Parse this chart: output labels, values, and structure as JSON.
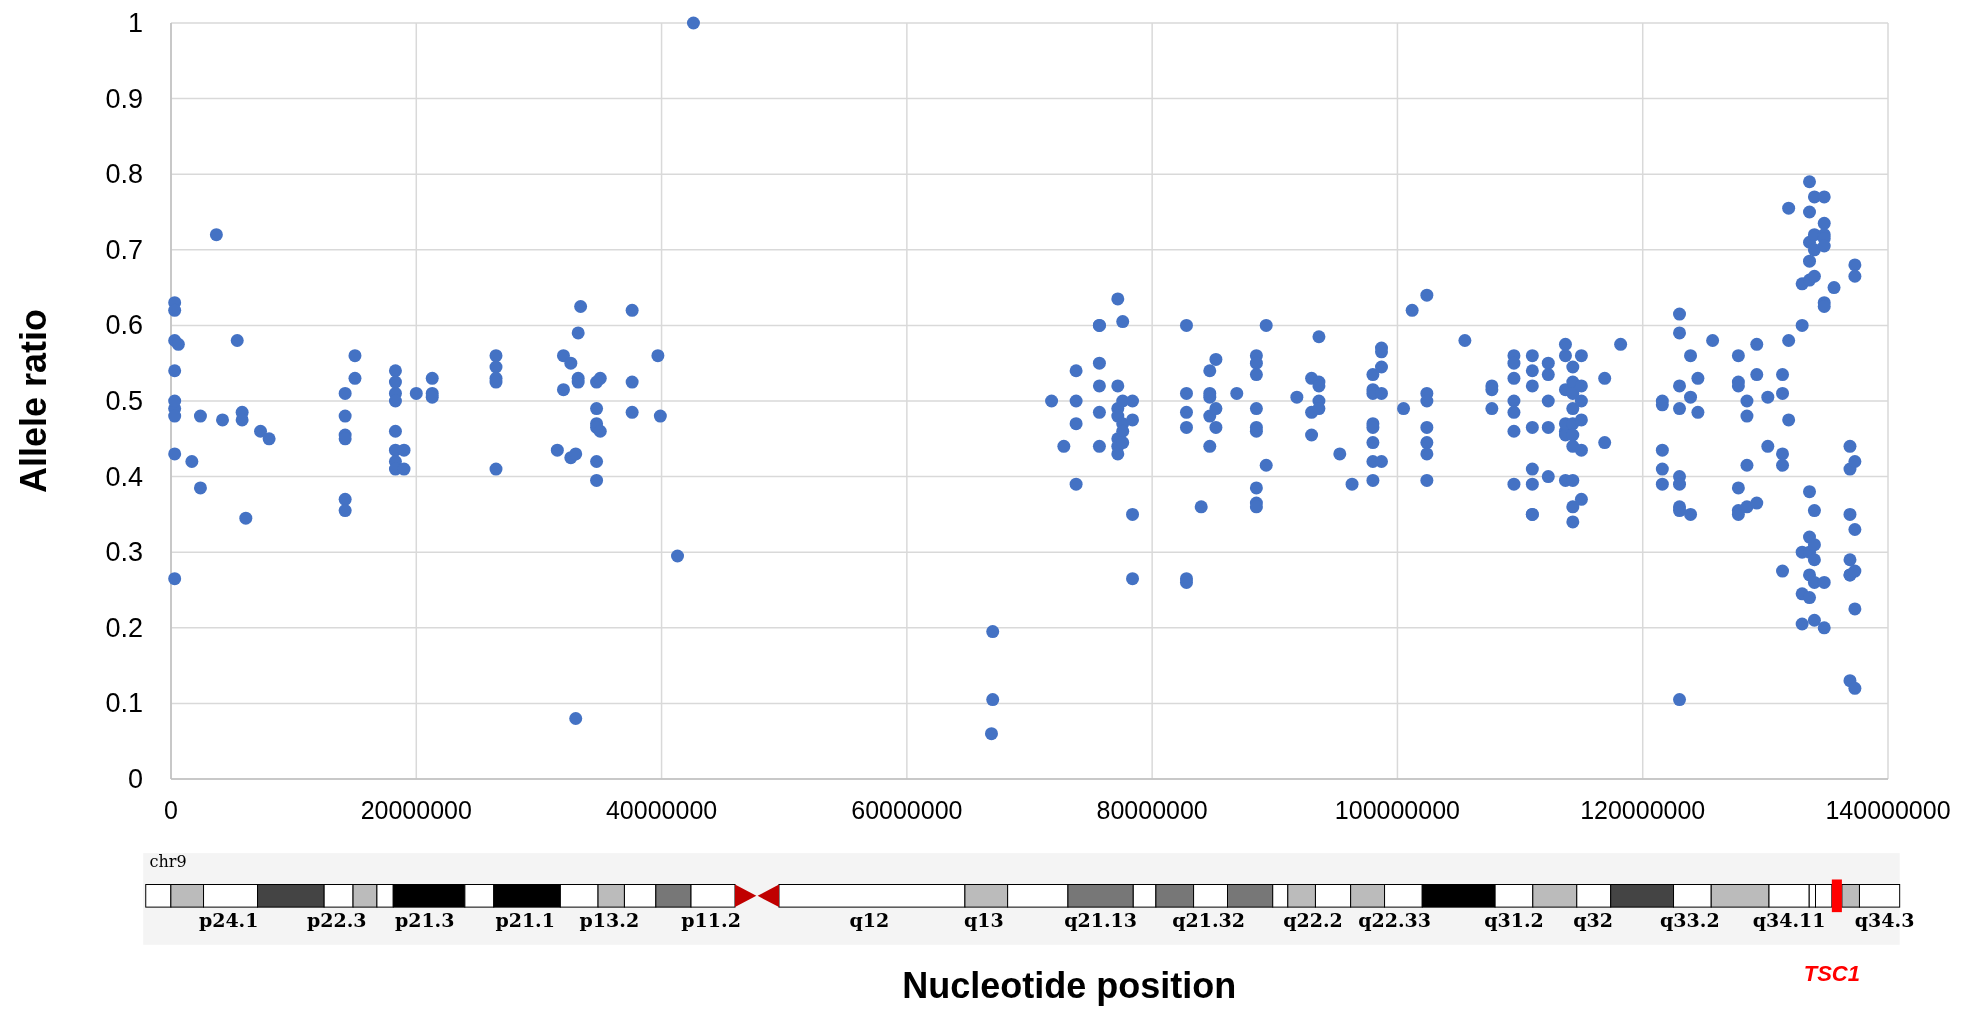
{
  "chart_data": {
    "type": "scatter",
    "xlabel": "Nucleotide position",
    "ylabel": "Allele ratio",
    "xlim": [
      0,
      140000000
    ],
    "ylim": [
      0,
      1
    ],
    "xticks": [
      0,
      20000000,
      40000000,
      60000000,
      80000000,
      100000000,
      120000000,
      140000000
    ],
    "yticks": [
      0,
      0.1,
      0.2,
      0.3,
      0.4,
      0.5,
      0.6,
      0.7,
      0.8,
      0.9,
      1
    ],
    "grid": true,
    "marker": "circle",
    "annotations": [
      "chr9",
      "p24.1",
      "p22.3",
      "p21.3",
      "p21.1",
      "p13.2",
      "p11.2",
      "q12",
      "q13",
      "q21.13",
      "q21.32",
      "q22.2",
      "q22.33",
      "q31.2",
      "q32",
      "q33.2",
      "q34.11",
      "q34.3",
      "TSC1"
    ],
    "series": [
      {
        "color": "#4472c4",
        "x": [
          300000,
          300000,
          300000,
          300000,
          300000,
          300000,
          300000,
          300000,
          300000,
          600000,
          1700000,
          2400000,
          2400000,
          3700000,
          4200000,
          5400000,
          5800000,
          5800000,
          6100000,
          7300000,
          8000000,
          14200000,
          14200000,
          14200000,
          14200000,
          14200000,
          14200000,
          15000000,
          15000000,
          18300000,
          18300000,
          18300000,
          18300000,
          18300000,
          18300000,
          18300000,
          18300000,
          19000000,
          19000000,
          20000000,
          21300000,
          21300000,
          21300000,
          26500000,
          26500000,
          26500000,
          26500000,
          26500000,
          31500000,
          32000000,
          32000000,
          32600000,
          32600000,
          33000000,
          33000000,
          33200000,
          33200000,
          33200000,
          33400000,
          34700000,
          34700000,
          34700000,
          34700000,
          34700000,
          34700000,
          35000000,
          35000000,
          37600000,
          37600000,
          37600000,
          39700000,
          39900000,
          41300000,
          42600000,
          67000000,
          67000000,
          66900000,
          71800000,
          72800000,
          73800000,
          73800000,
          73800000,
          73800000,
          75700000,
          75700000,
          75700000,
          75700000,
          75700000,
          75700000,
          77200000,
          77200000,
          77200000,
          77200000,
          77200000,
          77200000,
          77200000,
          77600000,
          77600000,
          77600000,
          77600000,
          77600000,
          78400000,
          78400000,
          78400000,
          78400000,
          82800000,
          82800000,
          82800000,
          82800000,
          82800000,
          82800000,
          84000000,
          84700000,
          84700000,
          84700000,
          84700000,
          84700000,
          85200000,
          85200000,
          85200000,
          86900000,
          88500000,
          88500000,
          88500000,
          88500000,
          88500000,
          88500000,
          88500000,
          88500000,
          88500000,
          89300000,
          89300000,
          91800000,
          93000000,
          93000000,
          93000000,
          93600000,
          93600000,
          93600000,
          93600000,
          93600000,
          95300000,
          96300000,
          98000000,
          98000000,
          98000000,
          98000000,
          98000000,
          98000000,
          98000000,
          98000000,
          98700000,
          98700000,
          98700000,
          98700000,
          98700000,
          100500000,
          101200000,
          102400000,
          102400000,
          102400000,
          102400000,
          102400000,
          102400000,
          102400000,
          105500000,
          107700000,
          107700000,
          107700000,
          109500000,
          109500000,
          109500000,
          109500000,
          109500000,
          109500000,
          109500000,
          111000000,
          111000000,
          111000000,
          111000000,
          111000000,
          111000000,
          111000000,
          111000000,
          112300000,
          112300000,
          112300000,
          112300000,
          112300000,
          113700000,
          113700000,
          113700000,
          113700000,
          113700000,
          113700000,
          113700000,
          114300000,
          114300000,
          114300000,
          114300000,
          114300000,
          114300000,
          114300000,
          114300000,
          114300000,
          114300000,
          115000000,
          115000000,
          115000000,
          115000000,
          115000000,
          115000000,
          116900000,
          116900000,
          118200000,
          121600000,
          121600000,
          121600000,
          121600000,
          121600000,
          123000000,
          123000000,
          123000000,
          123000000,
          123000000,
          123000000,
          123000000,
          123000000,
          123000000,
          123900000,
          123900000,
          123900000,
          124500000,
          124500000,
          125700000,
          127800000,
          127800000,
          127800000,
          127800000,
          127800000,
          127800000,
          128500000,
          128500000,
          128500000,
          128500000,
          129300000,
          129300000,
          129300000,
          130200000,
          130200000,
          131400000,
          131400000,
          131400000,
          131400000,
          131400000,
          131900000,
          131900000,
          131900000,
          133000000,
          133000000,
          133000000,
          133000000,
          133000000,
          133600000,
          133600000,
          133600000,
          133600000,
          133600000,
          133600000,
          133600000,
          133600000,
          133600000,
          133600000,
          134000000,
          134000000,
          134000000,
          134000000,
          134000000,
          134000000,
          134000000,
          134000000,
          134000000,
          134800000,
          134800000,
          134800000,
          134800000,
          134800000,
          134800000,
          134800000,
          134800000,
          134800000,
          135600000,
          136900000,
          136900000,
          136900000,
          136900000,
          136900000,
          136900000,
          136900000,
          137300000,
          137300000,
          137300000,
          137300000,
          137300000,
          137300000,
          137300000
        ],
        "values": [
          0.58,
          0.63,
          0.62,
          0.54,
          0.49,
          0.5,
          0.48,
          0.43,
          0.265,
          0.575,
          0.42,
          0.48,
          0.385,
          0.72,
          0.475,
          0.58,
          0.485,
          0.475,
          0.345,
          0.46,
          0.45,
          0.51,
          0.48,
          0.455,
          0.45,
          0.37,
          0.355,
          0.56,
          0.53,
          0.54,
          0.525,
          0.51,
          0.5,
          0.46,
          0.435,
          0.42,
          0.41,
          0.435,
          0.41,
          0.51,
          0.53,
          0.51,
          0.505,
          0.56,
          0.545,
          0.53,
          0.525,
          0.41,
          0.435,
          0.56,
          0.515,
          0.55,
          0.425,
          0.43,
          0.08,
          0.59,
          0.53,
          0.525,
          0.625,
          0.47,
          0.465,
          0.42,
          0.395,
          0.49,
          0.525,
          0.53,
          0.46,
          0.62,
          0.525,
          0.485,
          0.56,
          0.48,
          0.295,
          1.0,
          0.195,
          0.105,
          0.06,
          0.5,
          0.44,
          0.54,
          0.5,
          0.47,
          0.39,
          0.6,
          0.6,
          0.55,
          0.52,
          0.485,
          0.44,
          0.635,
          0.52,
          0.49,
          0.48,
          0.45,
          0.44,
          0.43,
          0.605,
          0.5,
          0.47,
          0.46,
          0.445,
          0.35,
          0.265,
          0.5,
          0.475,
          0.6,
          0.51,
          0.485,
          0.465,
          0.265,
          0.26,
          0.36,
          0.54,
          0.51,
          0.505,
          0.48,
          0.44,
          0.555,
          0.49,
          0.465,
          0.51,
          0.56,
          0.55,
          0.535,
          0.49,
          0.465,
          0.46,
          0.385,
          0.365,
          0.36,
          0.6,
          0.415,
          0.505,
          0.53,
          0.485,
          0.455,
          0.585,
          0.525,
          0.52,
          0.5,
          0.49,
          0.43,
          0.39,
          0.535,
          0.515,
          0.51,
          0.47,
          0.465,
          0.445,
          0.42,
          0.395,
          0.565,
          0.57,
          0.545,
          0.51,
          0.42,
          0.49,
          0.62,
          0.64,
          0.51,
          0.5,
          0.465,
          0.445,
          0.43,
          0.395,
          0.58,
          0.52,
          0.515,
          0.49,
          0.56,
          0.55,
          0.53,
          0.5,
          0.485,
          0.46,
          0.39,
          0.56,
          0.54,
          0.52,
          0.465,
          0.41,
          0.39,
          0.35,
          0.35,
          0.55,
          0.535,
          0.5,
          0.465,
          0.4,
          0.575,
          0.56,
          0.515,
          0.46,
          0.455,
          0.395,
          0.47,
          0.545,
          0.525,
          0.51,
          0.49,
          0.47,
          0.455,
          0.44,
          0.395,
          0.36,
          0.34,
          0.56,
          0.52,
          0.5,
          0.475,
          0.435,
          0.37,
          0.53,
          0.445,
          0.575,
          0.5,
          0.495,
          0.435,
          0.41,
          0.39,
          0.615,
          0.59,
          0.52,
          0.49,
          0.4,
          0.39,
          0.36,
          0.355,
          0.105,
          0.56,
          0.505,
          0.35,
          0.53,
          0.485,
          0.58,
          0.56,
          0.525,
          0.52,
          0.385,
          0.355,
          0.35,
          0.5,
          0.48,
          0.415,
          0.36,
          0.575,
          0.535,
          0.365,
          0.505,
          0.44,
          0.535,
          0.51,
          0.43,
          0.415,
          0.275,
          0.755,
          0.58,
          0.475,
          0.655,
          0.6,
          0.3,
          0.245,
          0.205,
          0.79,
          0.75,
          0.71,
          0.685,
          0.66,
          0.38,
          0.32,
          0.3,
          0.27,
          0.24,
          0.77,
          0.72,
          0.7,
          0.665,
          0.355,
          0.31,
          0.29,
          0.26,
          0.21,
          0.77,
          0.735,
          0.72,
          0.715,
          0.705,
          0.63,
          0.625,
          0.26,
          0.2,
          0.65,
          0.44,
          0.41,
          0.35,
          0.29,
          0.27,
          0.27,
          0.13,
          0.68,
          0.665,
          0.42,
          0.33,
          0.275,
          0.225,
          0.12
        ]
      }
    ]
  }
}
